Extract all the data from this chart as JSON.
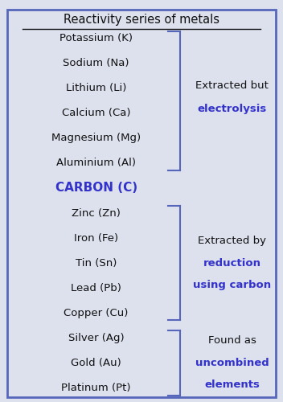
{
  "title": "Reactivity series of metals",
  "background_color": "#dde1ee",
  "border_color": "#5566bb",
  "title_color": "#111111",
  "title_fontsize": 10.5,
  "metals": [
    "Potassium (K)",
    "Sodium (Na)",
    "Lithium (Li)",
    "Calcium (Ca)",
    "Magnesium (Mg)",
    "Aluminium (Al)",
    "CARBON (C)",
    "Zinc (Zn)",
    "Iron (Fe)",
    "Tin (Sn)",
    "Lead (Pb)",
    "Copper (Cu)",
    "Silver (Ag)",
    "Gold (Au)",
    "Platinum (Pt)"
  ],
  "carbon_index": 6,
  "carbon_color": "#3333cc",
  "normal_color": "#111111",
  "bracket_color": "#5566bb",
  "bracket_linewidth": 1.5,
  "metal_fontsize": 9.5,
  "carbon_fontsize": 11,
  "label_normal_color": "#111111",
  "label_bold_color": "#3333cc",
  "label_fontsize": 9.5
}
